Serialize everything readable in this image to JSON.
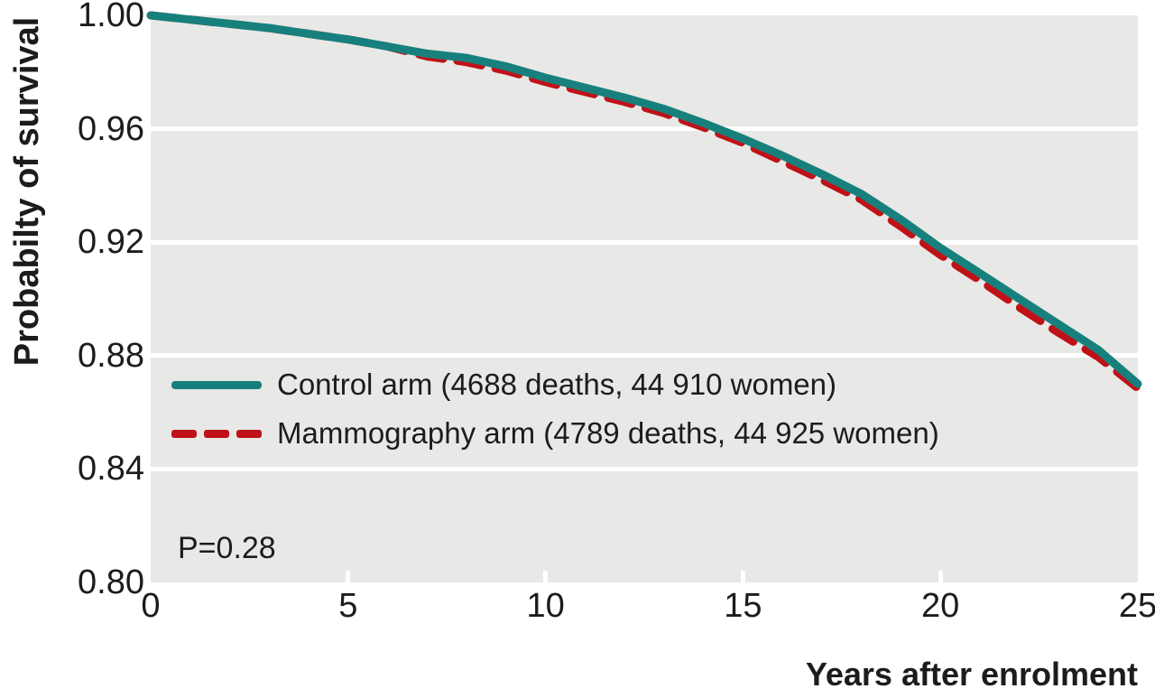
{
  "figure": {
    "background_color": "#ffffff",
    "text_color": "#1d1c1b"
  },
  "chart_data": {
    "type": "line",
    "title": "",
    "xlabel": "Years after enrolment",
    "ylabel": "Probabilty of survival",
    "xlim": [
      0,
      25
    ],
    "ylim": [
      0.8,
      1.0
    ],
    "x_ticks": [
      0,
      5,
      10,
      15,
      20,
      25
    ],
    "x_tick_labels": [
      "0",
      "5",
      "10",
      "15",
      "20",
      "25"
    ],
    "y_ticks": [
      1.0,
      0.96,
      0.92,
      0.88,
      0.84,
      0.8
    ],
    "y_tick_labels": [
      "1.00",
      "0.96",
      "0.92",
      "0.88",
      "0.84",
      "0.80"
    ],
    "grid": "horizontal white gridlines on gray panel",
    "panel_color": "#e8e8e7",
    "gridline_color": "#ffffff",
    "legend_position": "inside lower-left",
    "annotations": [
      "P=0.28"
    ],
    "legend": [
      {
        "id": "control-arm",
        "label": "Control arm (4688 deaths, 44 910 women)",
        "color": "#17807d",
        "line": "solid"
      },
      {
        "id": "mammography-arm",
        "label": "Mammography arm (4789 deaths, 44 925 women)",
        "color": "#bf1218",
        "line": "dashed"
      }
    ],
    "series": [
      {
        "id": "mammography-arm",
        "name": "Mammography arm (4789 deaths, 44 925 women)",
        "color": "#bf1218",
        "style": "dashed",
        "x": [
          0,
          1,
          2,
          3,
          4,
          5,
          6,
          7,
          8,
          9,
          10,
          11,
          12,
          13,
          14,
          15,
          16,
          17,
          18,
          19,
          20,
          21,
          22,
          23,
          24,
          25
        ],
        "y": [
          1.0,
          0.9985,
          0.997,
          0.9955,
          0.9935,
          0.9915,
          0.989,
          0.9855,
          0.9835,
          0.9805,
          0.9765,
          0.973,
          0.9695,
          0.9655,
          0.9605,
          0.955,
          0.9485,
          0.942,
          0.935,
          0.9255,
          0.9155,
          0.9065,
          0.897,
          0.888,
          0.8795,
          0.8685
        ]
      },
      {
        "id": "control-arm",
        "name": "Control arm (4688 deaths, 44 910 women)",
        "color": "#17807d",
        "style": "solid",
        "x": [
          0,
          1,
          2,
          3,
          4,
          5,
          6,
          7,
          8,
          9,
          10,
          11,
          12,
          13,
          14,
          15,
          16,
          17,
          18,
          19,
          20,
          21,
          22,
          23,
          24,
          25
        ],
        "y": [
          1.0,
          0.9985,
          0.997,
          0.9955,
          0.9935,
          0.9915,
          0.989,
          0.9865,
          0.985,
          0.982,
          0.978,
          0.9745,
          0.971,
          0.967,
          0.962,
          0.9565,
          0.9505,
          0.944,
          0.937,
          0.928,
          0.918,
          0.909,
          0.9,
          0.891,
          0.882,
          0.87
        ]
      }
    ]
  }
}
